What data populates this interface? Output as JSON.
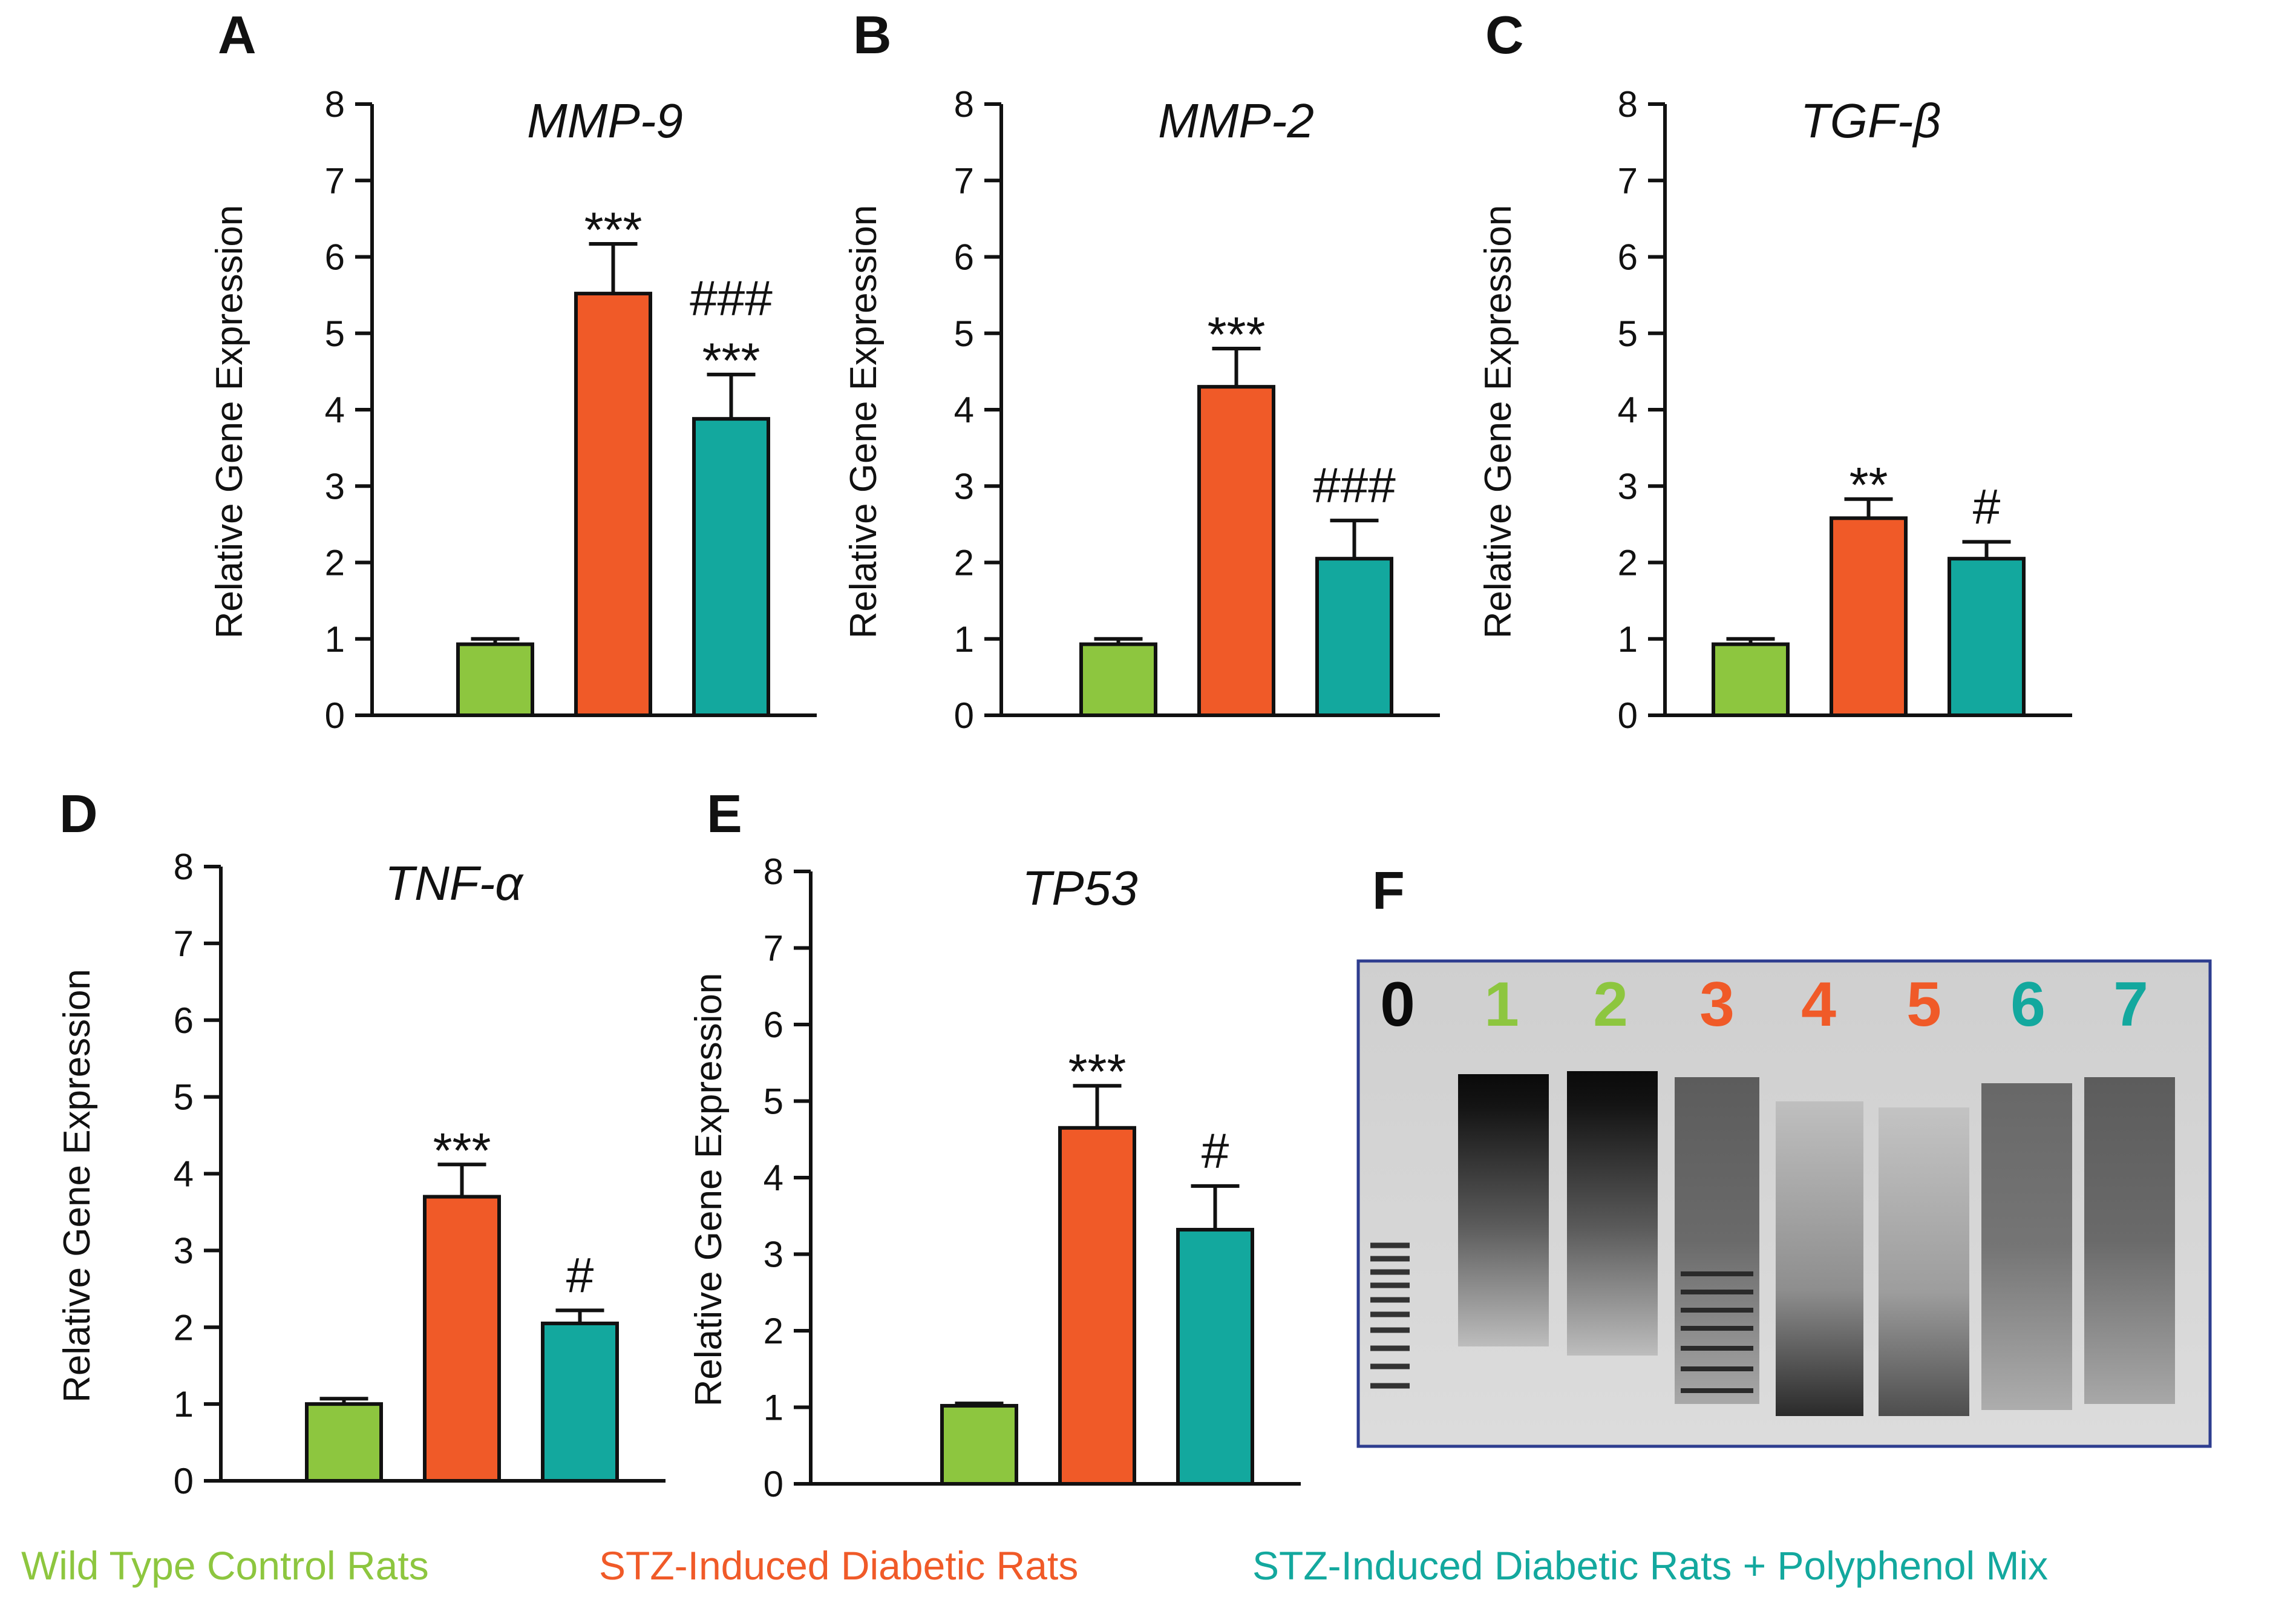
{
  "colors": {
    "wild_type": "#8dc63f",
    "stz": "#f05a28",
    "stz_poly": "#13a89e",
    "axis": "#111111",
    "gel_border": "#2e3d8f"
  },
  "legend": [
    {
      "label": "Wild Type Control Rats",
      "color": "#8dc63f"
    },
    {
      "label": "STZ-Induced Diabetic Rats",
      "color": "#f05a28"
    },
    {
      "label": "STZ-Induced Diabetic Rats + Polyphenol Mix",
      "color": "#13a89e"
    }
  ],
  "chart_data": [
    {
      "panel": "A",
      "type": "bar",
      "title": "MMP-9",
      "ylabel": "Relative Gene Expression",
      "ylim": [
        0,
        8
      ],
      "yticks": [
        "0",
        "1",
        "2",
        "3",
        "4",
        "5",
        "6",
        "7",
        "8"
      ],
      "series": [
        {
          "name": "Wild Type Control Rats",
          "value": 0.93,
          "error": 0.07,
          "annotation": ""
        },
        {
          "name": "STZ-Induced Diabetic Rats",
          "value": 5.52,
          "error": 0.65,
          "annotation": "***"
        },
        {
          "name": "STZ-Induced Diabetic Rats + Polyphenol Mix",
          "value": 3.88,
          "error": 0.58,
          "annotation": "***",
          "annotation2": "###"
        }
      ]
    },
    {
      "panel": "B",
      "type": "bar",
      "title": "MMP-2",
      "ylabel": "Relative Gene Expression",
      "ylim": [
        0,
        8
      ],
      "yticks": [
        "0",
        "1",
        "2",
        "3",
        "4",
        "5",
        "6",
        "7",
        "8"
      ],
      "series": [
        {
          "name": "Wild Type Control Rats",
          "value": 0.93,
          "error": 0.07,
          "annotation": ""
        },
        {
          "name": "STZ-Induced Diabetic Rats",
          "value": 4.3,
          "error": 0.5,
          "annotation": "***"
        },
        {
          "name": "STZ-Induced Diabetic Rats + Polyphenol Mix",
          "value": 2.05,
          "error": 0.5,
          "annotation": "###"
        }
      ]
    },
    {
      "panel": "C",
      "type": "bar",
      "title": "TGF-β",
      "ylabel": "Relative Gene Expression",
      "ylim": [
        0,
        8
      ],
      "yticks": [
        "0",
        "1",
        "2",
        "3",
        "4",
        "5",
        "6",
        "7",
        "8"
      ],
      "series": [
        {
          "name": "Wild Type Control Rats",
          "value": 0.93,
          "error": 0.07,
          "annotation": ""
        },
        {
          "name": "STZ-Induced Diabetic Rats",
          "value": 2.58,
          "error": 0.25,
          "annotation": "**"
        },
        {
          "name": "STZ-Induced Diabetic Rats + Polyphenol Mix",
          "value": 2.05,
          "error": 0.22,
          "annotation": "#"
        }
      ]
    },
    {
      "panel": "D",
      "type": "bar",
      "title": "TNF-α",
      "ylabel": "Relative Gene Expression",
      "ylim": [
        0,
        8
      ],
      "yticks": [
        "0",
        "1",
        "2",
        "3",
        "4",
        "5",
        "6",
        "7",
        "8"
      ],
      "series": [
        {
          "name": "Wild Type Control Rats",
          "value": 1.0,
          "error": 0.07,
          "annotation": ""
        },
        {
          "name": "STZ-Induced Diabetic Rats",
          "value": 3.7,
          "error": 0.42,
          "annotation": "***"
        },
        {
          "name": "STZ-Induced Diabetic Rats + Polyphenol Mix",
          "value": 2.05,
          "error": 0.17,
          "annotation": "#"
        }
      ]
    },
    {
      "panel": "E",
      "type": "bar",
      "title": "TP53",
      "ylabel": "Relative Gene Expression",
      "ylim": [
        0,
        8
      ],
      "yticks": [
        "0",
        "1",
        "2",
        "3",
        "4",
        "5",
        "6",
        "7",
        "8"
      ],
      "series": [
        {
          "name": "Wild Type Control Rats",
          "value": 1.02,
          "error": 0.03,
          "annotation": ""
        },
        {
          "name": "STZ-Induced Diabetic Rats",
          "value": 4.65,
          "error": 0.55,
          "annotation": "***"
        },
        {
          "name": "STZ-Induced Diabetic Rats + Polyphenol Mix",
          "value": 3.32,
          "error": 0.57,
          "annotation": "#"
        }
      ]
    }
  ],
  "gel": {
    "panel": "F",
    "lanes": [
      {
        "label": "0",
        "group": "ladder"
      },
      {
        "label": "1",
        "group": "wild_type"
      },
      {
        "label": "2",
        "group": "wild_type"
      },
      {
        "label": "3",
        "group": "stz"
      },
      {
        "label": "4",
        "group": "stz"
      },
      {
        "label": "5",
        "group": "stz"
      },
      {
        "label": "6",
        "group": "stz_poly"
      },
      {
        "label": "7",
        "group": "stz_poly"
      }
    ]
  }
}
